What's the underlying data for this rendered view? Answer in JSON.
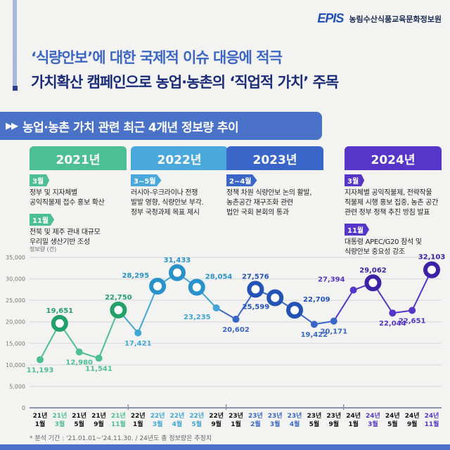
{
  "header": {
    "logo": "EPIS",
    "org": "농림수산식품교육문화정보원",
    "title_line1": "‘식량안보’에 대한 국제적 이슈 대응에 적극",
    "title_line2": "가치확산 캠페인으로 농업·농촌의 ‘직업적 가치’ 주목"
  },
  "section": {
    "icon": "double-play-icon",
    "title": "농업·농촌 가치 관련 최근 4개년 정보량 추이"
  },
  "timeline": [
    {
      "year": "2021년",
      "color": "#4dbf94",
      "events": [
        {
          "month": "3월",
          "text": "정부 및 지자체별\n공익직불제 접수 홍보 확산"
        },
        {
          "month": "11월",
          "text": "전북 및 제주 관내 대규모\n우리밀 생산기반 조성"
        }
      ]
    },
    {
      "year": "2022년",
      "color": "#4aa8dc",
      "events": [
        {
          "month": "3~5월",
          "text": "러시아-우크라이나 전쟁\n발발 영향, 식량안보 부각.\n정부 국정과제 목표 제시"
        }
      ]
    },
    {
      "year": "2023년",
      "color": "#3b66c9",
      "events": [
        {
          "month": "2~4월",
          "text": "정책 차원 식량안보 논의 활발,\n농촌공간 재구조화 관련\n법안 국회 본회의 통과"
        }
      ]
    },
    {
      "year": "2024년",
      "color": "#5536c8",
      "events": [
        {
          "month": "3월",
          "text": "지자체별 공익직불제, 전략작물\n직불제 시행 홍보 집중, 농촌 공간\n관련 정부 정책 추진 방침 발표"
        },
        {
          "month": "11월",
          "text": "대통령 APEC/G20 참석 및\n식량안보 중요성 강조"
        }
      ]
    }
  ],
  "chart_data": {
    "type": "line",
    "ylabel": "정보량 (건)",
    "ylim": [
      0,
      35000
    ],
    "yticks": [
      0,
      5000,
      10000,
      15000,
      20000,
      25000,
      30000,
      35000
    ],
    "ytick_labels": [
      "0",
      "5,000",
      "10,000",
      "15,000",
      "20,000",
      "25,000",
      "30,000",
      "35,000"
    ],
    "grid": true,
    "categories": [
      "21년 1월",
      "21년 3월",
      "21년 5월",
      "21년 9월",
      "21년 11월",
      "22년 1월",
      "22년 3월",
      "22년 4월",
      "22년 5월",
      "22년 9월",
      "23년 1월",
      "23년 2월",
      "23년 3월",
      "23년 4월",
      "23년 5월",
      "23년 9월",
      "24년 1월",
      "24년 3월",
      "24년 5월",
      "24년 9월",
      "24년 11월"
    ],
    "values": [
      11193,
      19651,
      12980,
      11541,
      22750,
      17421,
      28295,
      31433,
      28054,
      23235,
      20602,
      27576,
      25599,
      22709,
      19422,
      20171,
      27394,
      29062,
      22044,
      22651,
      32103
    ],
    "value_labels": [
      "11,193",
      "19,651",
      "12,980",
      "11,541",
      "22,750",
      "17,421",
      "28,295",
      "31,433",
      "28,054",
      "23,235",
      "20,602",
      "27,576",
      "25,599",
      "22,709",
      "19,422",
      "20,171",
      "27,394",
      "29,062",
      "22,044",
      "22,651",
      "32,103"
    ],
    "year_group": [
      0,
      0,
      0,
      0,
      0,
      1,
      1,
      1,
      1,
      1,
      2,
      2,
      2,
      2,
      2,
      2,
      3,
      3,
      3,
      3,
      3
    ],
    "highlighted": [
      false,
      true,
      false,
      false,
      true,
      false,
      true,
      true,
      true,
      false,
      false,
      true,
      true,
      true,
      false,
      false,
      false,
      true,
      false,
      false,
      true
    ],
    "label_side": [
      "below",
      "above",
      "below",
      "below",
      "above",
      "below",
      "above-left",
      "above",
      "above-right",
      "below-left",
      "below",
      "above",
      "below-left",
      "above-right",
      "below",
      "below",
      "above-left",
      "above",
      "below",
      "below",
      "above"
    ],
    "group_colors": [
      "#4dbf94",
      "#3fa6d6",
      "#3b66c9",
      "#5536c8"
    ],
    "highlight_colors": [
      "#24a06a",
      "#2a92cb",
      "#2453b8",
      "#3d22a8"
    ]
  },
  "footnote": "* 분석 기간 : '21.01.01~'24.11.30. / 24년도 총 정보량은 추정치"
}
